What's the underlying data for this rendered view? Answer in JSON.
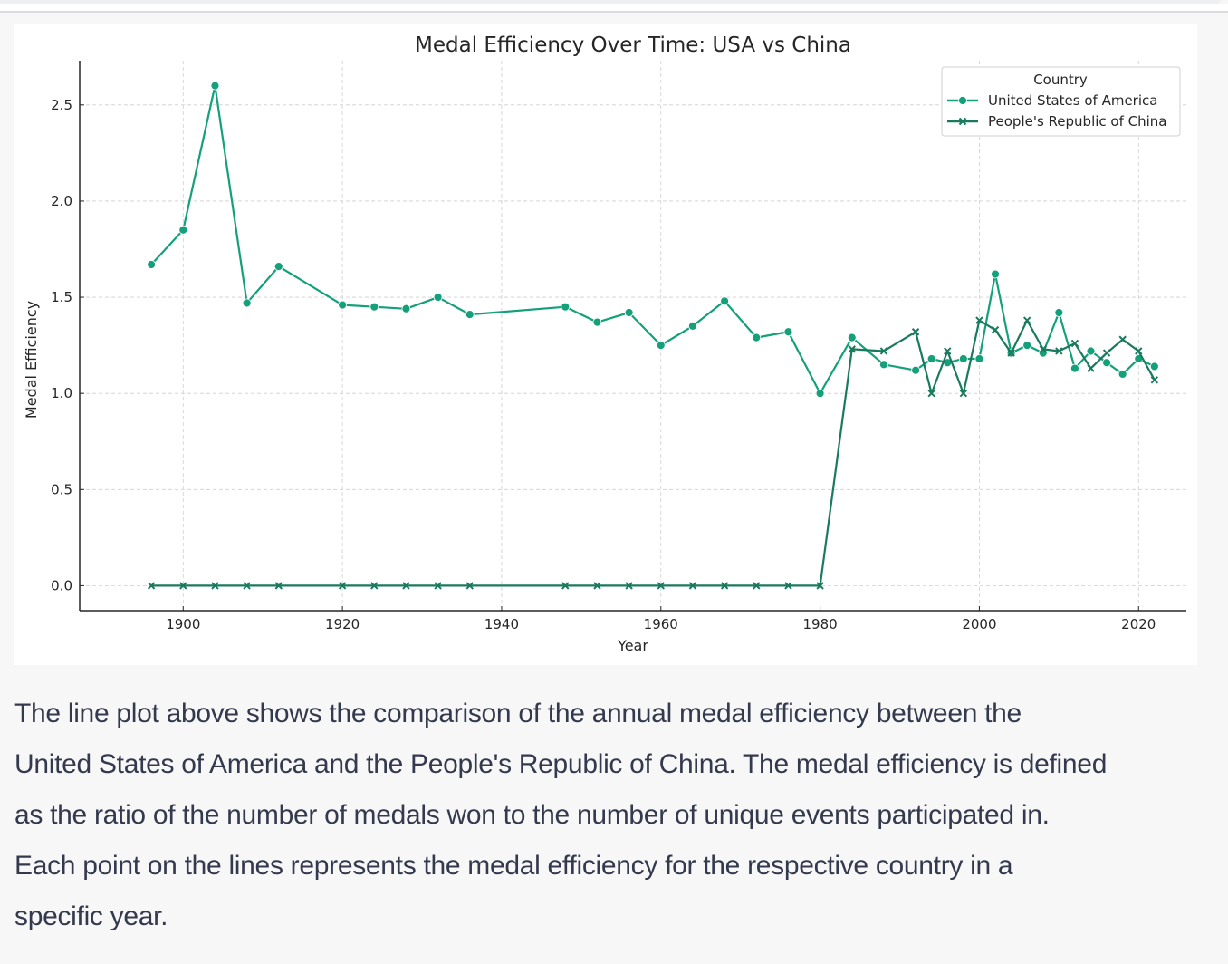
{
  "chart_data": {
    "type": "line",
    "title": "Medal Efficiency Over Time: USA vs China",
    "xlabel": "Year",
    "ylabel": "Medal Efficiency",
    "xlim": [
      1887,
      2026
    ],
    "ylim": [
      -0.13,
      2.73
    ],
    "xticks": [
      1900,
      1920,
      1940,
      1960,
      1980,
      2000,
      2020
    ],
    "xtick_labels": [
      "1900",
      "1920",
      "1940",
      "1960",
      "1980",
      "2000",
      "2020"
    ],
    "yticks": [
      0.0,
      0.5,
      1.0,
      1.5,
      2.0,
      2.5
    ],
    "ytick_labels": [
      "0.0",
      "0.5",
      "1.0",
      "1.5",
      "2.0",
      "2.5"
    ],
    "grid": true,
    "legend": {
      "title": "Country",
      "position": "top-right",
      "entries": [
        "United States of America",
        "People's Republic of China"
      ]
    },
    "series": [
      {
        "name": "United States of America",
        "color": "#14a07a",
        "marker": "circle",
        "x": [
          1896,
          1900,
          1904,
          1908,
          1912,
          1920,
          1924,
          1928,
          1932,
          1936,
          1948,
          1952,
          1956,
          1960,
          1964,
          1968,
          1972,
          1976,
          1980,
          1984,
          1988,
          1992,
          1994,
          1996,
          1998,
          2000,
          2002,
          2004,
          2006,
          2008,
          2010,
          2012,
          2014,
          2016,
          2018,
          2020,
          2022
        ],
        "values": [
          1.67,
          1.85,
          2.6,
          1.47,
          1.66,
          1.46,
          1.45,
          1.44,
          1.5,
          1.41,
          1.45,
          1.37,
          1.42,
          1.25,
          1.35,
          1.48,
          1.29,
          1.32,
          1.0,
          1.29,
          1.15,
          1.12,
          1.18,
          1.16,
          1.18,
          1.18,
          1.62,
          1.21,
          1.25,
          1.21,
          1.42,
          1.13,
          1.22,
          1.16,
          1.1,
          1.18,
          1.14
        ]
      },
      {
        "name": "People's Republic of China",
        "color": "#1a7a5e",
        "marker": "x",
        "x": [
          1896,
          1900,
          1904,
          1908,
          1912,
          1920,
          1924,
          1928,
          1932,
          1936,
          1948,
          1952,
          1956,
          1960,
          1964,
          1968,
          1972,
          1976,
          1980,
          1984,
          1988,
          1992,
          1994,
          1996,
          1998,
          2000,
          2002,
          2004,
          2006,
          2008,
          2010,
          2012,
          2014,
          2016,
          2018,
          2020,
          2022
        ],
        "values": [
          0.0,
          0.0,
          0.0,
          0.0,
          0.0,
          0.0,
          0.0,
          0.0,
          0.0,
          0.0,
          0.0,
          0.0,
          0.0,
          0.0,
          0.0,
          0.0,
          0.0,
          0.0,
          0.0,
          1.23,
          1.22,
          1.32,
          1.0,
          1.22,
          1.0,
          1.38,
          1.33,
          1.21,
          1.38,
          1.23,
          1.22,
          1.26,
          1.13,
          1.21,
          1.28,
          1.22,
          1.07
        ]
      }
    ]
  },
  "description": {
    "lines": [
      "The line plot above shows the comparison of the annual medal efficiency between the",
      "United States of America and the People's Republic of China. The medal efficiency is defined",
      "as the ratio of the number of medals won to the number of unique events participated in.",
      "Each point on the lines represents the medal efficiency for the respective country in a",
      "specific year."
    ]
  }
}
